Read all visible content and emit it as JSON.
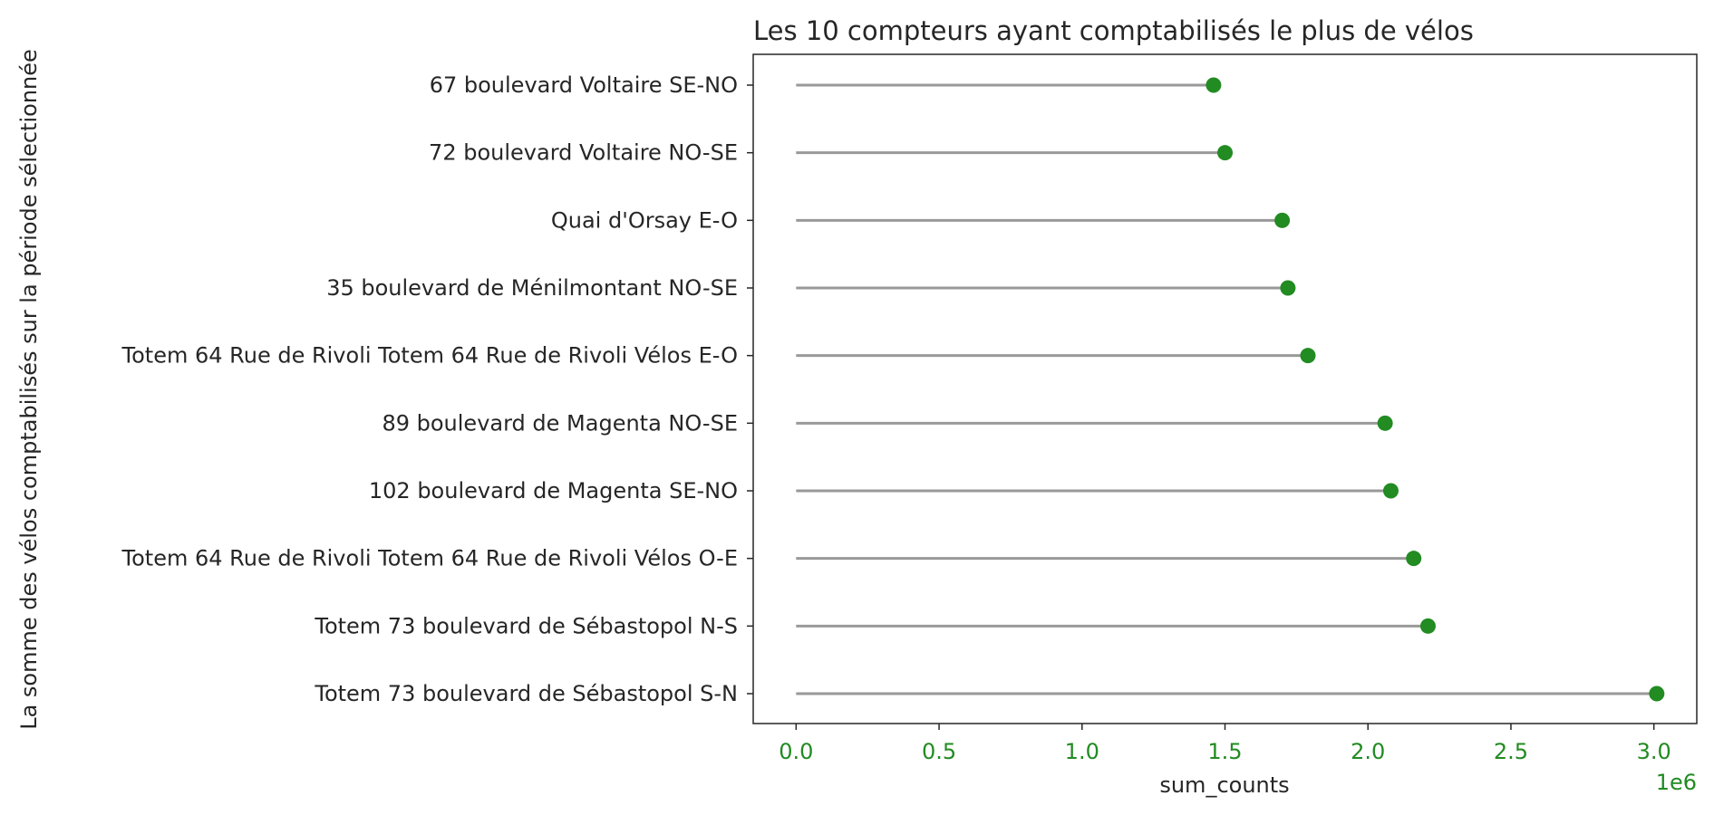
{
  "chart_data": {
    "type": "lollipop",
    "orientation": "horizontal",
    "title": "Les 10 compteurs ayant comptabilisés le plus de vélos",
    "xlabel": "sum_counts",
    "ylabel": "La somme des vélos comptabilisés sur la période sélectionnée",
    "x_offset_label": "1e6",
    "x_ticks": [
      "0.0",
      "0.5",
      "1.0",
      "1.5",
      "2.0",
      "2.5",
      "3.0"
    ],
    "x_tick_values": [
      0,
      0.5,
      1.0,
      1.5,
      2.0,
      2.5,
      3.0
    ],
    "xlim": [
      -0.15,
      3.15
    ],
    "categories": [
      "67 boulevard Voltaire SE-NO",
      "72 boulevard Voltaire NO-SE",
      "Quai d'Orsay E-O",
      "35 boulevard de Ménilmontant NO-SE",
      "Totem 64 Rue de Rivoli Totem 64 Rue de Rivoli Vélos E-O",
      "89 boulevard de Magenta NO-SE",
      "102 boulevard de Magenta SE-NO",
      "Totem 64 Rue de Rivoli Totem 64 Rue de Rivoli Vélos O-E",
      "Totem 73 boulevard de Sébastopol N-S",
      "Totem 73 boulevard de Sébastopol S-N"
    ],
    "values": [
      1.46,
      1.5,
      1.7,
      1.72,
      1.79,
      2.06,
      2.08,
      2.16,
      2.21,
      3.01
    ],
    "value_unit_multiplier": 1000000,
    "colors": {
      "marker": "#228b22",
      "stem": "#999999",
      "tick_labels": "#228b22",
      "text": "#262626"
    },
    "grid": false
  }
}
